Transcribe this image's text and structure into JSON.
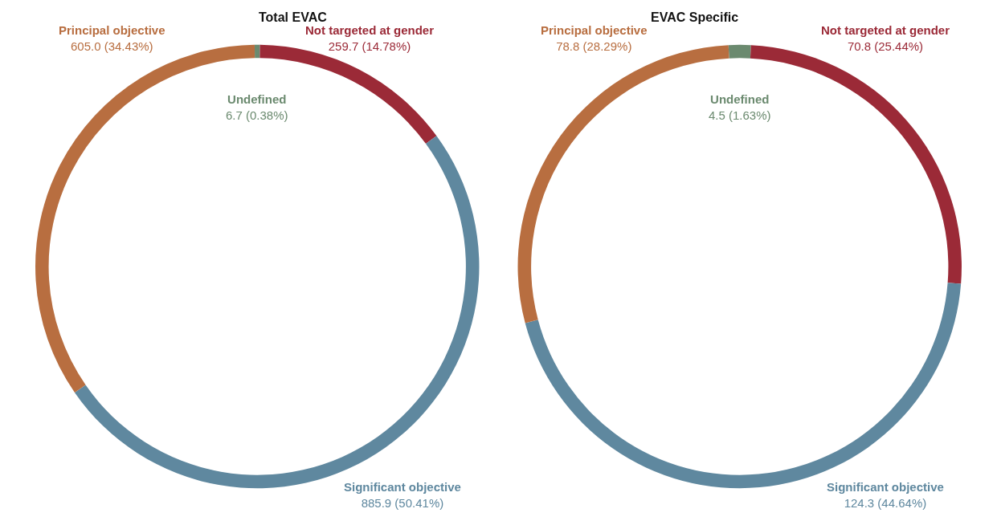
{
  "chart_data": [
    {
      "type": "donut",
      "title": "Total EVAC",
      "categories": [
        "Undefined",
        "Not targeted at gender",
        "Significant objective",
        "Principal objective"
      ],
      "values": [
        6.7,
        259.7,
        885.9,
        605.0
      ],
      "value_labels": [
        "6.7 (0.38%)",
        "259.7 (14.78%)",
        "885.9 (50.41%)",
        "605.0 (34.43%)"
      ],
      "colors": [
        "#6b8a6f",
        "#9b2a37",
        "#5f889f",
        "#b86e40"
      ],
      "legend": false
    },
    {
      "type": "donut",
      "title": "EVAC Specific",
      "categories": [
        "Undefined",
        "Not targeted at gender",
        "Significant objective",
        "Principal objective"
      ],
      "values": [
        4.5,
        70.8,
        124.3,
        78.8
      ],
      "value_labels": [
        "4.5 (1.63%)",
        "70.8 (25.44%)",
        "124.3 (44.64%)",
        "78.8 (28.29%)"
      ],
      "colors": [
        "#6b8a6f",
        "#9b2a37",
        "#5f889f",
        "#b86e40"
      ],
      "legend": false
    }
  ]
}
